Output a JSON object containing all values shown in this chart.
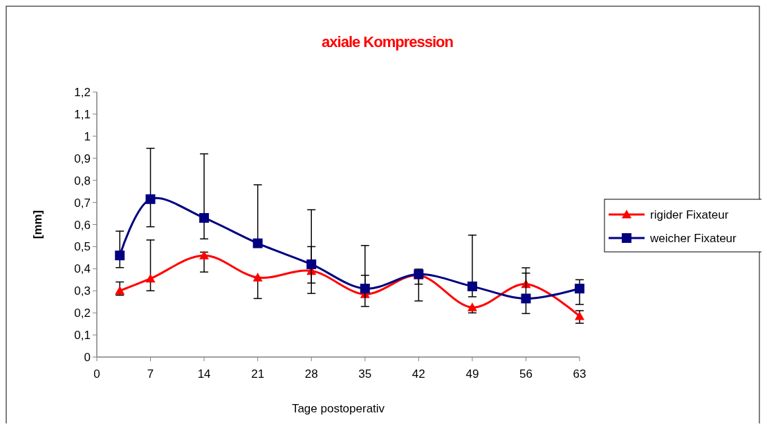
{
  "chart_data": {
    "type": "line",
    "title": "axiale Kompression",
    "xlabel": "Tage postoperativ",
    "ylabel": "[mm]",
    "x": [
      3,
      7,
      14,
      21,
      28,
      35,
      42,
      49,
      56,
      63
    ],
    "series": [
      {
        "name": "rigider Fixateur",
        "color": "#ff0000",
        "marker": "triangle",
        "values": [
          0.3,
          0.355,
          0.46,
          0.36,
          0.39,
          0.285,
          0.37,
          0.225,
          0.33,
          0.185
        ],
        "errors": [
          [
            0.28,
            0.34
          ],
          [
            0.3,
            0.53
          ],
          [
            0.385,
            0.475
          ],
          [
            0.265,
            0.36
          ],
          [
            0.335,
            0.5
          ],
          [
            0.285,
            0.37
          ],
          [
            0.254,
            0.37
          ],
          [
            0.2,
            0.225
          ],
          [
            0.33,
            0.404
          ],
          [
            0.153,
            0.21
          ]
        ]
      },
      {
        "name": "weicher Fixateur",
        "color": "#000080",
        "marker": "square",
        "values": [
          0.46,
          0.715,
          0.63,
          0.515,
          0.42,
          0.31,
          0.375,
          0.32,
          0.265,
          0.31
        ],
        "errors": [
          [
            0.405,
            0.57
          ],
          [
            0.59,
            0.945
          ],
          [
            0.535,
            0.92
          ],
          [
            0.515,
            0.78
          ],
          [
            0.288,
            0.667
          ],
          [
            0.229,
            0.505
          ],
          [
            0.33,
            0.398
          ],
          [
            0.273,
            0.552
          ],
          [
            0.197,
            0.38
          ],
          [
            0.238,
            0.35
          ]
        ]
      }
    ],
    "xlim": [
      0,
      63
    ],
    "xticks": [
      0,
      7,
      14,
      21,
      28,
      35,
      42,
      49,
      56,
      63
    ],
    "ylim": [
      0,
      1.2
    ],
    "yticks": [
      0,
      {
        "value": 0.1,
        "label": "0,1"
      },
      {
        "value": 0.2,
        "label": "0,2"
      },
      {
        "value": 0.3,
        "label": "0,3"
      },
      {
        "value": 0.4,
        "label": "0,4"
      },
      {
        "value": 0.5,
        "label": "0,5"
      },
      {
        "value": 0.6,
        "label": "0,6"
      },
      {
        "value": 0.7,
        "label": "0,7"
      },
      {
        "value": 0.8,
        "label": "0,8"
      },
      {
        "value": 0.9,
        "label": "0,9"
      },
      1,
      {
        "value": 1.1,
        "label": "1,1"
      },
      {
        "value": 1.2,
        "label": "1,2"
      }
    ],
    "legend": "right",
    "grid": false
  }
}
